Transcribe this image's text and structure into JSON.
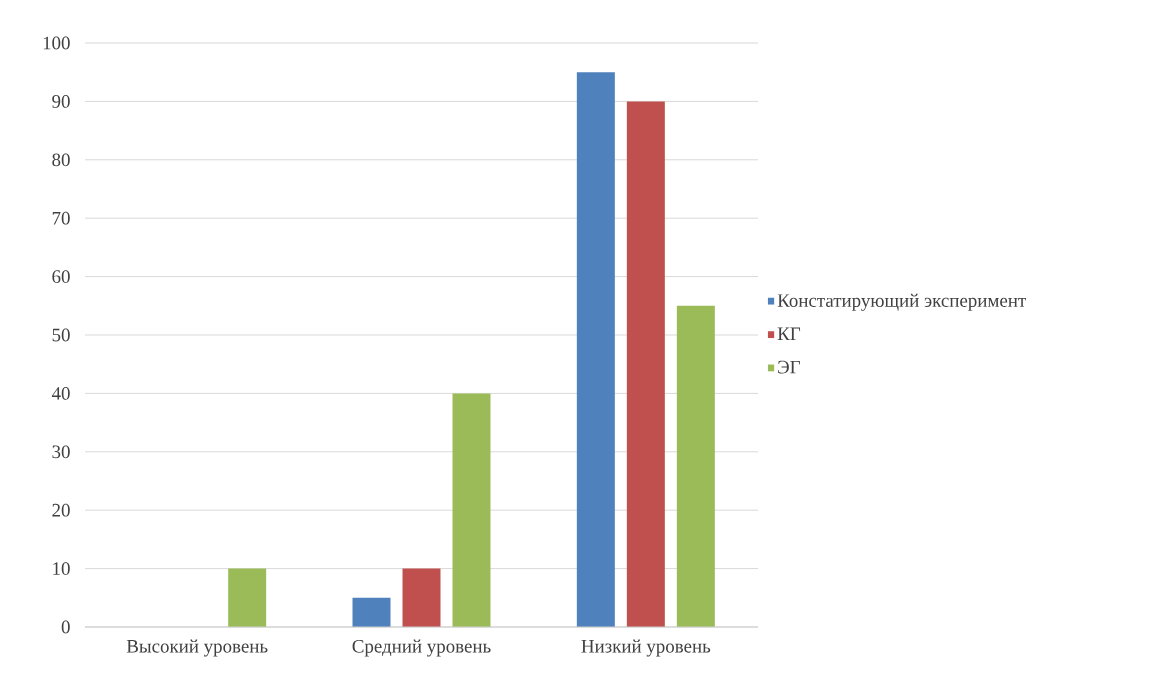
{
  "chart_data": {
    "type": "bar",
    "categories": [
      "Высокий уровень",
      "Средний уровень",
      "Низкий уровень"
    ],
    "series": [
      {
        "name": "Констатирующий эксперимент",
        "color": "#4f81bd",
        "values": [
          0,
          5,
          95
        ]
      },
      {
        "name": "КГ",
        "color": "#c0504d",
        "values": [
          0,
          10,
          90
        ]
      },
      {
        "name": "ЭГ",
        "color": "#9bbb59",
        "values": [
          10,
          40,
          55
        ]
      }
    ],
    "ylim": [
      0,
      100
    ],
    "yticks": [
      0,
      10,
      20,
      30,
      40,
      50,
      60,
      70,
      80,
      90,
      100
    ],
    "grid": "y",
    "legend": "right"
  }
}
